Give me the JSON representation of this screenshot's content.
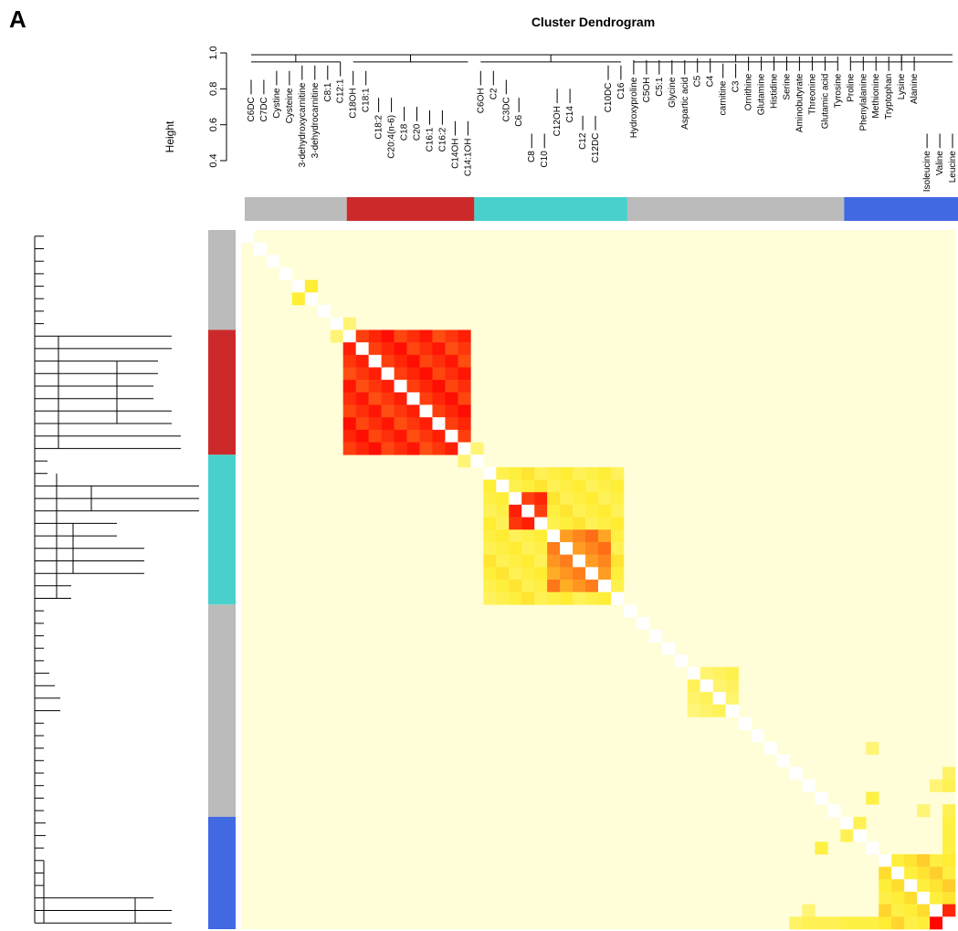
{
  "panel_label": "A",
  "chart_data": {
    "type": "heatmap",
    "title": "Cluster Dendrogram",
    "ylabel": "Height",
    "ylim": [
      0.4,
      1.0
    ],
    "yticks": [
      "0.4",
      "0.6",
      "0.8",
      "1.0"
    ],
    "grid": false,
    "legend": "none",
    "labels": [
      "C6DC",
      "C7DC",
      "Cystine",
      "Cysteine",
      "3-dehydroxycarnitine",
      "3-dehydrocarnitine",
      "C8:1",
      "C12:1",
      "C18OH",
      "C18:1",
      "C18:2",
      "C20:4(n-6)",
      "C18",
      "C20",
      "C16:1",
      "C16:2",
      "C14OH",
      "C14:1OH",
      "C6OH",
      "C2",
      "C3DC",
      "C6",
      "C8",
      "C10",
      "C12OH",
      "C14",
      "C12",
      "C12DC",
      "C10DC",
      "C16",
      "Hydroxyproline",
      "C5OH",
      "C5:1",
      "Glycine",
      "Aspartic acid",
      "C5",
      "C4",
      "carnitine",
      "C3",
      "Ornithine",
      "Glutamine",
      "Histidine",
      "Serine",
      "Aminobutyrate",
      "Threonine",
      "Glutamic acid",
      "Tyrosine",
      "Proline",
      "Phenylalanine",
      "Methionine",
      "Tryptophan",
      "Lysine",
      "Alanine",
      "Isoleucine",
      "Valine",
      "Leucine"
    ],
    "modules": [
      {
        "color": "#bbbbbb",
        "start": 0,
        "end": 7
      },
      {
        "color": "#cc2a2a",
        "start": 8,
        "end": 17
      },
      {
        "color": "#48d1cc",
        "start": 18,
        "end": 29
      },
      {
        "color": "#bbbbbb",
        "start": 30,
        "end": 46
      },
      {
        "color": "#4169e1",
        "start": 47,
        "end": 55
      }
    ],
    "value_scale": {
      "low": "#fffed8",
      "mid": "#ffee33",
      "high": "#ff0000"
    },
    "blocks": [
      {
        "r0": 8,
        "r1": 17,
        "c0": 8,
        "c1": 17,
        "value": 0.9
      },
      {
        "r0": 21,
        "r1": 23,
        "c0": 21,
        "c1": 23,
        "value": 0.9
      },
      {
        "r0": 19,
        "r1": 29,
        "c0": 19,
        "c1": 29,
        "value": 0.45
      },
      {
        "r0": 24,
        "r1": 28,
        "c0": 24,
        "c1": 28,
        "value": 0.7
      },
      {
        "r0": 35,
        "r1": 38,
        "c0": 35,
        "c1": 38,
        "value": 0.35
      },
      {
        "r0": 50,
        "r1": 55,
        "c0": 50,
        "c1": 55,
        "value": 0.5
      },
      {
        "r0": 54,
        "r1": 55,
        "c0": 54,
        "c1": 55,
        "value": 0.95
      }
    ],
    "cells": [
      {
        "r": 4,
        "c": 5,
        "value": 0.5
      },
      {
        "r": 5,
        "c": 4,
        "value": 0.5
      },
      {
        "r": 7,
        "c": 8,
        "value": 0.3
      },
      {
        "r": 8,
        "c": 7,
        "value": 0.3
      },
      {
        "r": 17,
        "c": 18,
        "value": 0.3
      },
      {
        "r": 18,
        "c": 17,
        "value": 0.3
      },
      {
        "r": 44,
        "c": 54,
        "value": 0.3
      },
      {
        "r": 54,
        "c": 44,
        "value": 0.3
      },
      {
        "r": 47,
        "c": 48,
        "value": 0.4
      },
      {
        "r": 48,
        "c": 47,
        "value": 0.4
      },
      {
        "r": 49,
        "c": 45,
        "value": 0.45
      },
      {
        "r": 45,
        "c": 49,
        "value": 0.45
      },
      {
        "r": 55,
        "c": 43,
        "value": 0.35
      },
      {
        "r": 55,
        "c": 44,
        "value": 0.4
      },
      {
        "r": 55,
        "c": 45,
        "value": 0.4
      },
      {
        "r": 55,
        "c": 46,
        "value": 0.4
      },
      {
        "r": 55,
        "c": 47,
        "value": 0.45
      },
      {
        "r": 55,
        "c": 48,
        "value": 0.45
      },
      {
        "r": 55,
        "c": 49,
        "value": 0.45
      },
      {
        "r": 43,
        "c": 55,
        "value": 0.35
      },
      {
        "r": 44,
        "c": 55,
        "value": 0.4
      },
      {
        "r": 46,
        "c": 55,
        "value": 0.4
      },
      {
        "r": 47,
        "c": 55,
        "value": 0.45
      },
      {
        "r": 48,
        "c": 55,
        "value": 0.45
      },
      {
        "r": 49,
        "c": 55,
        "value": 0.45
      },
      {
        "r": 41,
        "c": 49,
        "value": 0.3
      },
      {
        "r": 46,
        "c": 53,
        "value": 0.3
      }
    ],
    "top_dendrogram_height": [
      0.85,
      0.85,
      0.9,
      0.9,
      0.93,
      0.93,
      0.93,
      0.95,
      0.9,
      0.9,
      0.75,
      0.75,
      0.7,
      0.7,
      0.68,
      0.68,
      0.62,
      0.62,
      0.9,
      0.9,
      0.85,
      0.75,
      0.55,
      0.55,
      0.8,
      0.8,
      0.65,
      0.65,
      0.93,
      0.93,
      0.96,
      0.96,
      0.96,
      0.96,
      0.96,
      0.97,
      0.97,
      0.94,
      0.94,
      0.98,
      0.98,
      0.98,
      0.98,
      0.98,
      0.98,
      0.98,
      0.98,
      0.98,
      0.98,
      0.98,
      0.98,
      0.98,
      0.98,
      0.55,
      0.55,
      0.55
    ]
  }
}
